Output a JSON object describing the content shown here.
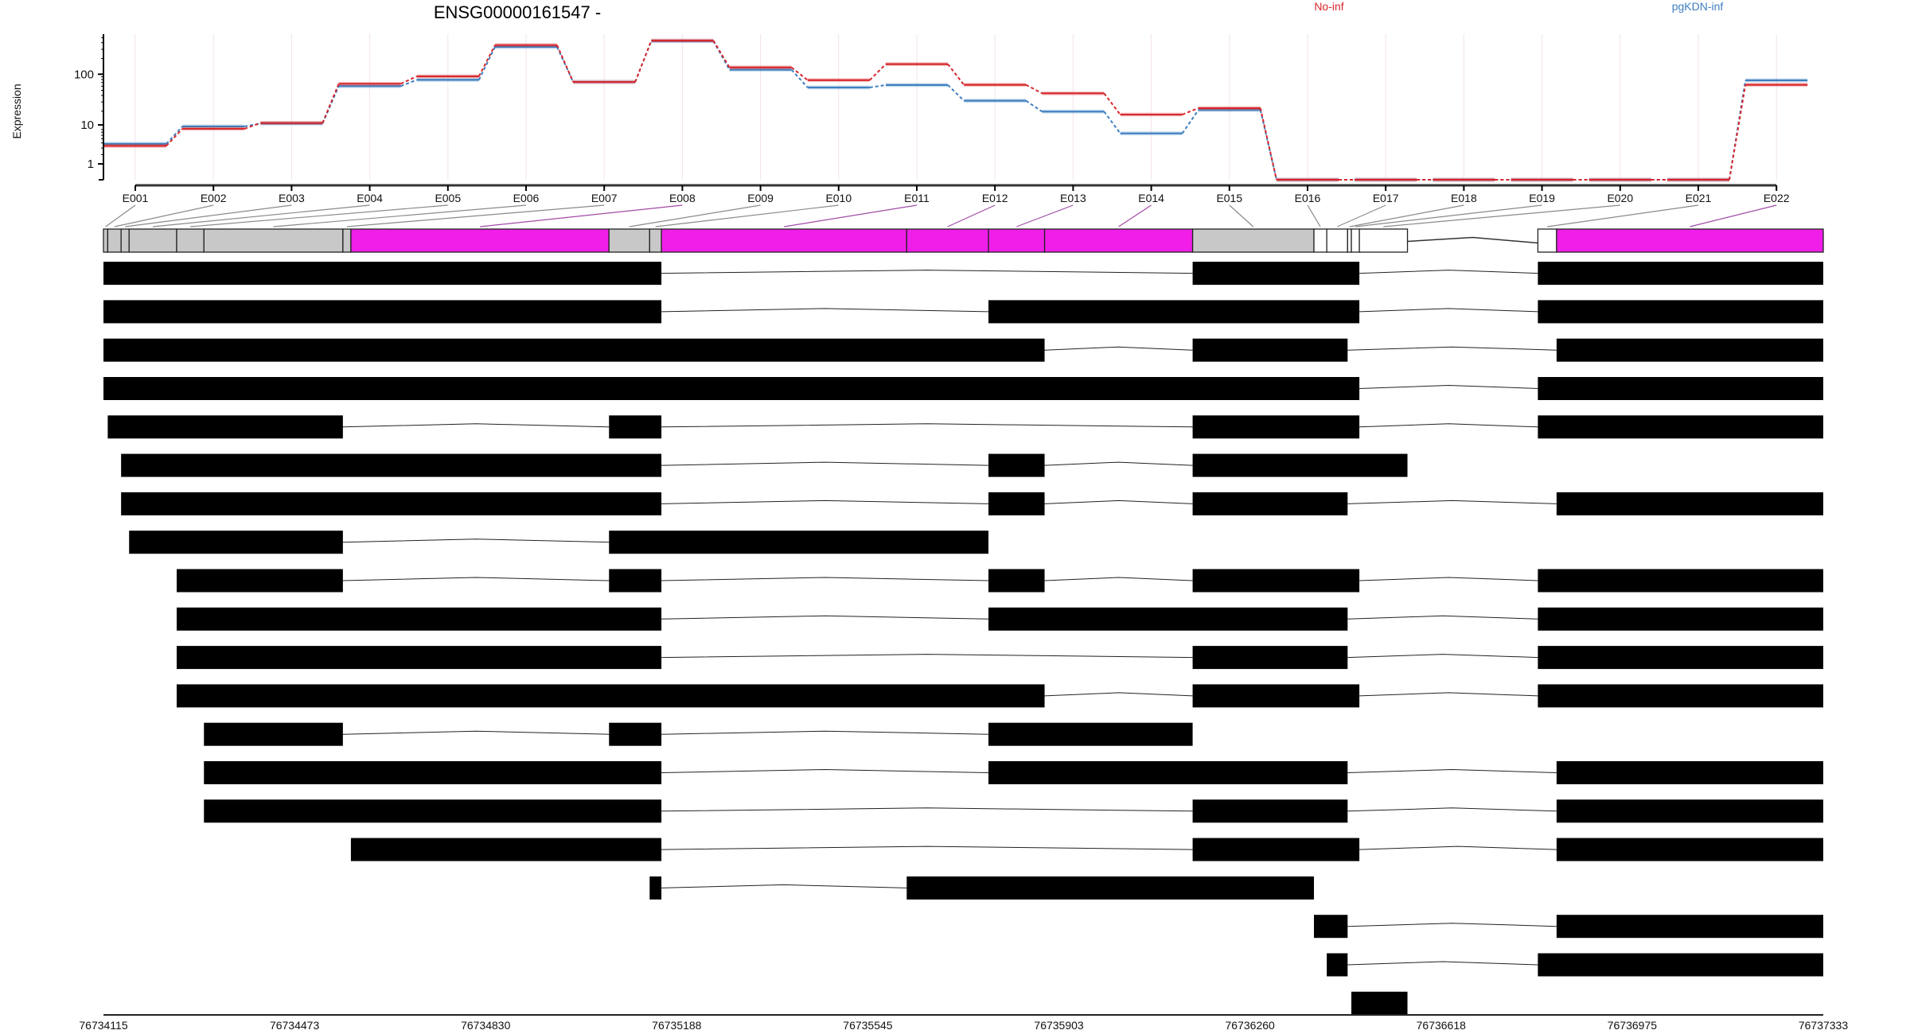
{
  "chart_data": [
    {
      "type": "line",
      "title": "ENSG00000161547 -",
      "ylabel": "Expression",
      "y_scale": "log10(x+1)",
      "ylim": [
        0,
        590
      ],
      "y_ticks": [
        "1",
        "10",
        "100"
      ],
      "grid": "vertical, faint",
      "legend_placement": "top-right",
      "categories": [
        "E001",
        "E002",
        "E003",
        "E004",
        "E005",
        "E006",
        "E007",
        "E008",
        "E009",
        "E010",
        "E011",
        "E012",
        "E013",
        "E014",
        "E015",
        "E016",
        "E017",
        "E018",
        "E019",
        "E020",
        "E021",
        "E022"
      ],
      "series": [
        {
          "name": "No-inf",
          "color": "#d7262b",
          "values": [
            3.4,
            8.3,
            11,
            65.5,
            91,
            360,
            71,
            439,
            135,
            77,
            156,
            62.5,
            42.8,
            16.3,
            21.9,
            0,
            0,
            0,
            0,
            0,
            0,
            62.5
          ]
        },
        {
          "name": "pgKDN-inf",
          "color": "#3d7fc1",
          "values": [
            3.8,
            9.3,
            10.7,
            59,
            78,
            332,
            71,
            430,
            122,
            55.5,
            62,
            30.7,
            18.7,
            6.6,
            20.1,
            0,
            0,
            0,
            0,
            0,
            0,
            76.3
          ]
        }
      ]
    },
    {
      "type": "gene-model",
      "colors": {
        "coding": "#f01ee8",
        "noncoding": "#c8c8c8",
        "untranscribed": "#ffffff"
      },
      "exons": [
        {
          "id": "E001",
          "start": 76734115,
          "end": 76734123,
          "kind": "noncoding"
        },
        {
          "id": "E002",
          "start": 76734123,
          "end": 76734148,
          "kind": "noncoding"
        },
        {
          "id": "E003",
          "start": 76734148,
          "end": 76734163,
          "kind": "noncoding"
        },
        {
          "id": "E004",
          "start": 76734163,
          "end": 76734252,
          "kind": "noncoding"
        },
        {
          "id": "E005",
          "start": 76734252,
          "end": 76734303,
          "kind": "noncoding"
        },
        {
          "id": "E006",
          "start": 76734303,
          "end": 76734563,
          "kind": "noncoding"
        },
        {
          "id": "E007",
          "start": 76734563,
          "end": 76734578,
          "kind": "noncoding"
        },
        {
          "id": "E008",
          "start": 76734578,
          "end": 76735061,
          "kind": "coding"
        },
        {
          "id": "E009",
          "start": 76735061,
          "end": 76735137,
          "kind": "noncoding"
        },
        {
          "id": "E010",
          "start": 76735137,
          "end": 76735159,
          "kind": "noncoding"
        },
        {
          "id": "E011",
          "start": 76735159,
          "end": 76735618,
          "kind": "coding"
        },
        {
          "id": "E012",
          "start": 76735618,
          "end": 76735771,
          "kind": "coding"
        },
        {
          "id": "E013",
          "start": 76735771,
          "end": 76735876,
          "kind": "coding"
        },
        {
          "id": "E014",
          "start": 76735876,
          "end": 76736153,
          "kind": "coding"
        },
        {
          "id": "E015",
          "start": 76736153,
          "end": 76736380,
          "kind": "noncoding"
        },
        {
          "id": "E016",
          "start": 76736380,
          "end": 76736404,
          "kind": "untranscribed"
        },
        {
          "id": "E017",
          "start": 76736404,
          "end": 76736443,
          "kind": "untranscribed"
        },
        {
          "id": "E018",
          "start": 76736443,
          "end": 76736450,
          "kind": "untranscribed"
        },
        {
          "id": "E019",
          "start": 76736450,
          "end": 76736465,
          "kind": "untranscribed"
        },
        {
          "id": "E020",
          "start": 76736465,
          "end": 76736555,
          "kind": "untranscribed"
        },
        {
          "id": "E021",
          "start": 76736799,
          "end": 76736834,
          "kind": "untranscribed"
        },
        {
          "id": "E022",
          "start": 76736834,
          "end": 76737333,
          "kind": "coding"
        }
      ],
      "transcripts": [
        [
          [
            "E001",
            "E010"
          ],
          [
            "E015",
            "E019"
          ],
          [
            "E021",
            "E022"
          ]
        ],
        [
          [
            "E001",
            "E010"
          ],
          [
            "E013",
            "E019"
          ],
          [
            "E021",
            "E022"
          ]
        ],
        [
          [
            "E001",
            "E013"
          ],
          [
            "E015",
            "E017"
          ],
          [
            "E022",
            "E022"
          ]
        ],
        [
          [
            "E001",
            "E019"
          ],
          [
            "E021",
            "E022"
          ]
        ],
        [
          [
            "E002",
            "E006"
          ],
          [
            "E009",
            "E010"
          ],
          [
            "E015",
            "E019"
          ],
          [
            "E021",
            "E022"
          ]
        ],
        [
          [
            "E003",
            "E010"
          ],
          [
            "E013",
            "E013"
          ],
          [
            "E015",
            "E020"
          ]
        ],
        [
          [
            "E003",
            "E010"
          ],
          [
            "E013",
            "E013"
          ],
          [
            "E015",
            "E017"
          ],
          [
            "E022",
            "E022"
          ]
        ],
        [
          [
            "E004",
            "E006"
          ],
          [
            "E009",
            "E012"
          ]
        ],
        [
          [
            "E005",
            "E006"
          ],
          [
            "E009",
            "E010"
          ],
          [
            "E013",
            "E013"
          ],
          [
            "E015",
            "E019"
          ],
          [
            "E021",
            "E022"
          ]
        ],
        [
          [
            "E005",
            "E010"
          ],
          [
            "E013",
            "E017"
          ],
          [
            "E021",
            "E022"
          ]
        ],
        [
          [
            "E005",
            "E010"
          ],
          [
            "E015",
            "E017"
          ],
          [
            "E021",
            "E022"
          ]
        ],
        [
          [
            "E005",
            "E013"
          ],
          [
            "E015",
            "E019"
          ],
          [
            "E021",
            "E022"
          ]
        ],
        [
          [
            "E006",
            "E006"
          ],
          [
            "E009",
            "E010"
          ],
          [
            "E013",
            "E014"
          ]
        ],
        [
          [
            "E006",
            "E010"
          ],
          [
            "E013",
            "E017"
          ],
          [
            "E022",
            "E022"
          ]
        ],
        [
          [
            "E006",
            "E010"
          ],
          [
            "E015",
            "E017"
          ],
          [
            "E022",
            "E022"
          ]
        ],
        [
          [
            "E008",
            "E010"
          ],
          [
            "E015",
            "E019"
          ],
          [
            "E022",
            "E022"
          ]
        ],
        [
          [
            "E010",
            "E010"
          ],
          [
            "E012",
            "E015"
          ]
        ],
        [
          [
            "E016",
            "E017"
          ],
          [
            "E022",
            "E022"
          ]
        ],
        [
          [
            "E017",
            "E017"
          ],
          [
            "E021",
            "E022"
          ]
        ],
        [
          [
            "E019",
            "E020"
          ]
        ]
      ],
      "x_range": [
        76734115,
        76737333
      ],
      "x_ticks": [
        "76734115",
        "76734473",
        "76734830",
        "76735188",
        "76735545",
        "76735903",
        "76736260",
        "76736618",
        "76736975",
        "76737333"
      ]
    }
  ]
}
